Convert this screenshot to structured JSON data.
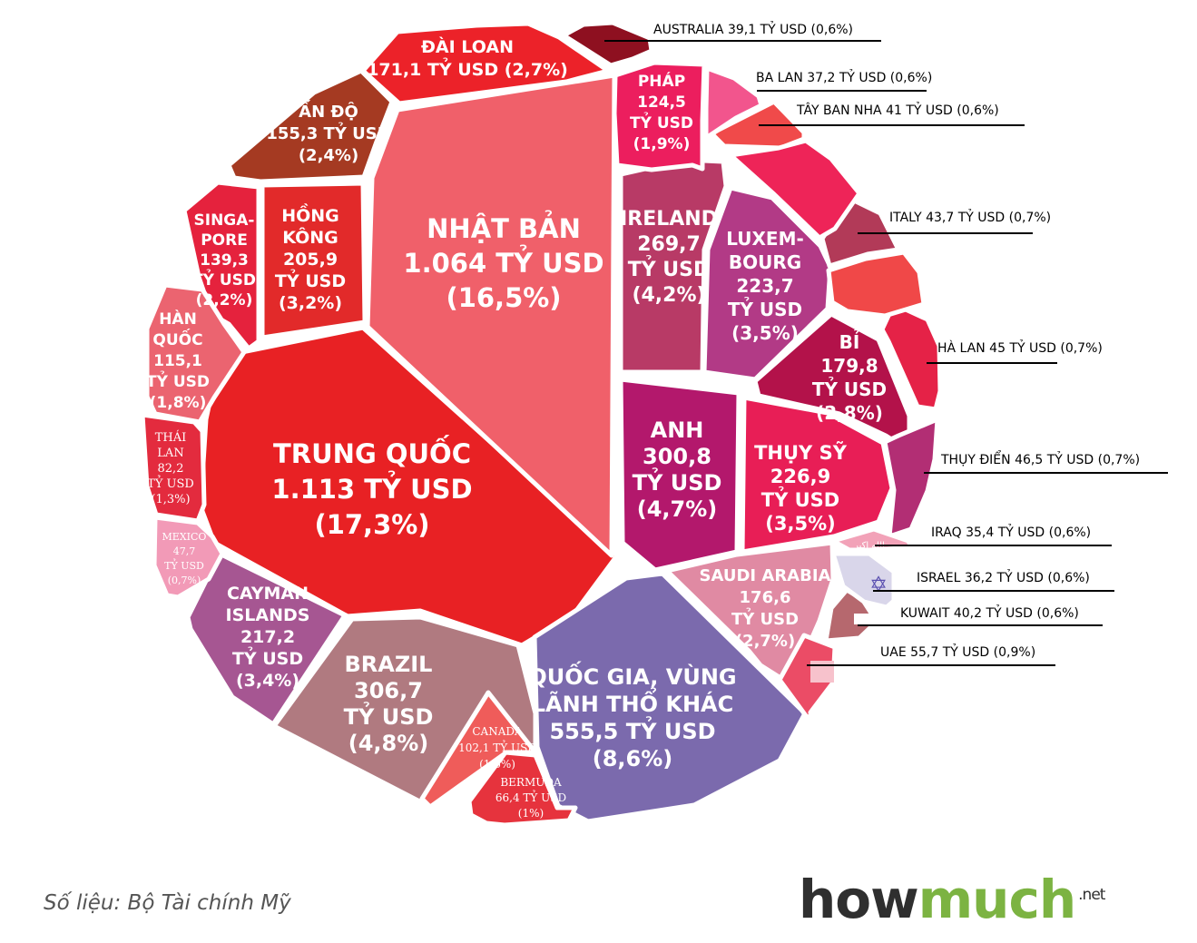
{
  "chart_data": {
    "type": "voronoi-treemap",
    "title": "",
    "unit": "TỶ USD",
    "cells": [
      {
        "id": "china",
        "label": [
          "TRUNG QUỐC",
          "1.113 TỶ USD",
          "(17,3%)"
        ],
        "value": 1113,
        "share": 17.3,
        "color": "#e82124"
      },
      {
        "id": "japan",
        "label": [
          "NHẬT BẢN",
          "1.064 TỶ USD",
          "(16,5%)"
        ],
        "value": 1064,
        "share": 16.5,
        "color": "#f0606a"
      },
      {
        "id": "other",
        "label": [
          "QUỐC GIA, VÙNG",
          "LÃNH THỔ KHÁC",
          "555,5 TỶ USD",
          "(8,6%)"
        ],
        "value": 555.5,
        "share": 8.6,
        "color": "#7b6aad"
      },
      {
        "id": "brazil",
        "label": [
          "BRAZIL",
          "306,7",
          "TỶ USD",
          "(4,8%)"
        ],
        "value": 306.7,
        "share": 4.8,
        "color": "#b07a80"
      },
      {
        "id": "uk",
        "label": [
          "ANH",
          "300,8",
          "TỶ USD",
          "(4,7%)"
        ],
        "value": 300.8,
        "share": 4.7,
        "color": "#b3186c"
      },
      {
        "id": "ireland",
        "label": [
          "IRELAND",
          "269,7",
          "TỶ USD",
          "(4,2%)"
        ],
        "value": 269.7,
        "share": 4.2,
        "color": "#b83a66"
      },
      {
        "id": "switzerland",
        "label": [
          "THỤY SỸ",
          "226,9",
          "TỶ USD",
          "(3,5%)"
        ],
        "value": 226.9,
        "share": 3.5,
        "color": "#e81e56"
      },
      {
        "id": "luxembourg",
        "label": [
          "LUXEM-",
          "BOURG",
          "223,7",
          "TỶ USD",
          "(3,5%)"
        ],
        "value": 223.7,
        "share": 3.5,
        "color": "#b23a86"
      },
      {
        "id": "cayman",
        "label": [
          "CAYMAN",
          "ISLANDS",
          "217,2",
          "TỶ USD",
          "(3,4%)"
        ],
        "value": 217.2,
        "share": 3.4,
        "color": "#a65692"
      },
      {
        "id": "hongkong",
        "label": [
          "HỒNG",
          "KÔNG",
          "205,9",
          "TỶ USD",
          "(3,2%)"
        ],
        "value": 205.9,
        "share": 3.2,
        "color": "#e22a2a"
      },
      {
        "id": "belgium",
        "label": [
          "BỈ",
          "179,8",
          "TỶ USD",
          "(2,8%)"
        ],
        "value": 179.8,
        "share": 2.8,
        "color": "#b3124a"
      },
      {
        "id": "saudi",
        "label": [
          "SAUDI ARABIA",
          "176,6",
          "TỶ USD",
          "(2,7%)"
        ],
        "value": 176.6,
        "share": 2.7,
        "color": "#e08aa3"
      },
      {
        "id": "taiwan",
        "label": [
          "ĐÀI LOAN",
          "171,1 TỶ USD (2,7%)"
        ],
        "value": 171.1,
        "share": 2.7,
        "color": "#ec2229"
      },
      {
        "id": "india",
        "label": [
          "ẤN ĐỘ",
          "155,3 TỶ USD",
          "(2,4%)"
        ],
        "value": 155.3,
        "share": 2.4,
        "color": "#a53a22"
      },
      {
        "id": "singapore",
        "label": [
          "SINGA-",
          "PORE",
          "139,3",
          "TỶ USD",
          "(2,2%)"
        ],
        "value": 139.3,
        "share": 2.2,
        "color": "#e5223d"
      },
      {
        "id": "france",
        "label": [
          "PHÁP",
          "124,5",
          "TỶ USD",
          "(1,9%)"
        ],
        "value": 124.5,
        "share": 1.9,
        "color": "#ec1e5e"
      },
      {
        "id": "korea",
        "label": [
          "HÀN",
          "QUỐC",
          "115,1",
          "TỶ USD",
          "(1,8%)"
        ],
        "value": 115.1,
        "share": 1.8,
        "color": "#eb6470"
      },
      {
        "id": "canada",
        "label": [
          "CANADA",
          "102,1 TỶ USD",
          "(1,6%)"
        ],
        "value": 102.1,
        "share": 1.6,
        "color": "#ef5c5a"
      },
      {
        "id": "thailand",
        "label": [
          "THÁI",
          "LAN",
          "82,2",
          "TỶ USD",
          "(1,3%)"
        ],
        "value": 82.2,
        "share": 1.3,
        "color": "#e32b3e"
      },
      {
        "id": "bermuda",
        "label": [
          "BERMUDA",
          "66,4 TỶ USD",
          "(1%)"
        ],
        "value": 66.4,
        "share": 1.0,
        "color": "#e6333d"
      },
      {
        "id": "uae",
        "label": [
          "UAE 55,7 TỶ USD (0,9%)"
        ],
        "value": 55.7,
        "share": 0.9,
        "color": "#eb4c66"
      },
      {
        "id": "mexico",
        "label": [
          "MEXICO",
          "47,7",
          "TỶ USD",
          "(0,7%)"
        ],
        "value": 47.7,
        "share": 0.7,
        "color": "#f29ab7"
      },
      {
        "id": "sweden",
        "label": [
          "THỤY ĐIỂN 46,5 TỶ USD (0,7%)"
        ],
        "value": 46.5,
        "share": 0.7,
        "color": "#b22e74"
      },
      {
        "id": "netherlands",
        "label": [
          "HÀ LAN 45 TỶ USD (0,7%)"
        ],
        "value": 45,
        "share": 0.7,
        "color": "#e52247"
      },
      {
        "id": "italy",
        "label": [
          "ITALY 43,7 TỶ USD (0,7%)"
        ],
        "value": 43.7,
        "share": 0.7,
        "color": "#b23a58"
      },
      {
        "id": "spain",
        "label": [
          "TÂY BAN NHA 41 TỶ USD (0,6%)"
        ],
        "value": 41,
        "share": 0.6,
        "color": "#f04a4a"
      },
      {
        "id": "kuwait",
        "label": [
          "KUWAIT 40,2 TỶ USD (0,6%)"
        ],
        "value": 40.2,
        "share": 0.6,
        "color": "#b6686e"
      },
      {
        "id": "australia",
        "label": [
          "AUSTRALIA 39,1 TỶ USD (0,6%)"
        ],
        "value": 39.1,
        "share": 0.6,
        "color": "#8e1020"
      },
      {
        "id": "poland",
        "label": [
          "BA LAN 37,2 TỶ USD (0,6%)"
        ],
        "value": 37.2,
        "share": 0.6,
        "color": "#f2558d"
      },
      {
        "id": "israel",
        "label": [
          "ISRAEL 36,2 TỶ USD (0,6%)"
        ],
        "value": 36.2,
        "share": 0.6,
        "color": "#d9d6ea"
      },
      {
        "id": "iraq",
        "label": [
          "IRAQ 35,4 TỶ USD (0,6%)"
        ],
        "value": 35.4,
        "share": 0.6,
        "color": "#f2a2b8"
      },
      {
        "id": "unlabeled_1",
        "label": [],
        "value": null,
        "share": null,
        "color": "#ee2458"
      },
      {
        "id": "unlabeled_2",
        "label": [],
        "value": null,
        "share": null,
        "color": "#f04848"
      }
    ],
    "flag_text": {
      "iraq": "الله اكبر",
      "israel": "✡"
    }
  },
  "footer": {
    "source": "Số liệu: Bộ Tài chính Mỹ",
    "brand_how": "how",
    "brand_much": "much",
    "brand_tld": ".net"
  }
}
